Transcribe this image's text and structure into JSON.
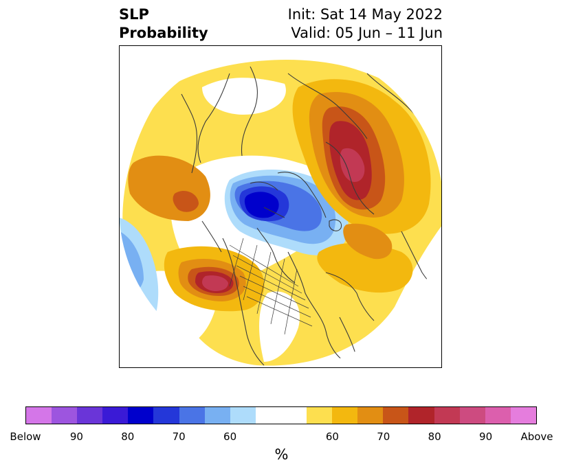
{
  "title": {
    "left_line1": "SLP",
    "left_line2": "Probability",
    "right_line1": "Init: Sat 14 May 2022",
    "right_line2": "Valid: 05 Jun – 11 Jun"
  },
  "map": {
    "projection": "north-polar-stereographic",
    "boundaries_color": "#3a3a3a"
  },
  "colorbar": {
    "colors": [
      "#d476e8",
      "#9d55df",
      "#6a35d8",
      "#3a1ad6",
      "#0000cc",
      "#2437d9",
      "#4a74e6",
      "#78b0f2",
      "#aedcfb",
      "#ffffff",
      "#ffffff",
      "#fddf4f",
      "#f3b80f",
      "#e28e13",
      "#c85518",
      "#b0242a",
      "#c23954",
      "#cd4b80",
      "#dc5fad",
      "#e57ddd"
    ],
    "tick_labels": [
      "Below",
      "90",
      "80",
      "70",
      "60",
      "60",
      "70",
      "80",
      "90",
      "Above"
    ],
    "unit": "%"
  }
}
